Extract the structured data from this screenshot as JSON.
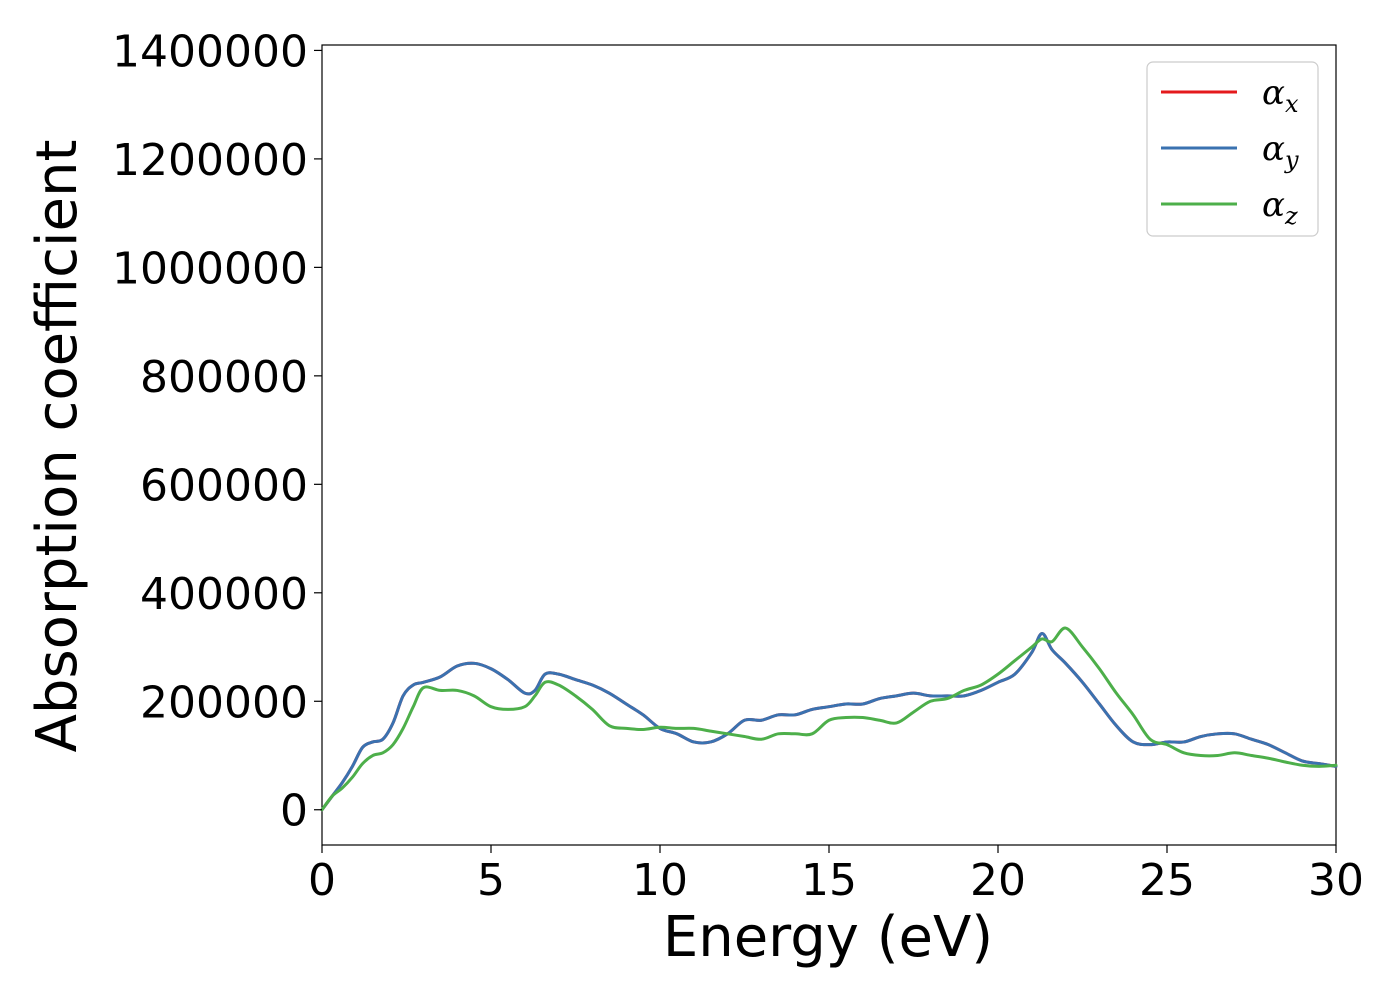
{
  "chart_data": {
    "type": "line",
    "title": "",
    "xlabel": "Energy (eV)",
    "ylabel": "Absorption coefficient",
    "xlim": [
      0,
      30
    ],
    "ylim": [
      -65000,
      1410000
    ],
    "x_ticks": [
      "0",
      "5",
      "10",
      "15",
      "20",
      "25",
      "30"
    ],
    "y_ticks": [
      "0",
      "200000",
      "400000",
      "600000",
      "800000",
      "1000000",
      "1200000",
      "1400000"
    ],
    "grid": false,
    "legend_position": "top-right",
    "series": [
      {
        "name": "α_x",
        "label_main": "α",
        "label_sub": "x",
        "color": "#e41a1c",
        "x": [
          0,
          0.3,
          0.6,
          0.9,
          1.2,
          1.5,
          1.8,
          2.1,
          2.4,
          2.7,
          3.0,
          3.5,
          4.0,
          4.5,
          5.0,
          5.5,
          6.0,
          6.3,
          6.6,
          7.0,
          7.5,
          8.0,
          8.5,
          9.0,
          9.5,
          10.0,
          10.5,
          11.0,
          11.5,
          12.0,
          12.5,
          13.0,
          13.5,
          14.0,
          14.5,
          15.0,
          15.5,
          16.0,
          16.5,
          17.0,
          17.5,
          18.0,
          18.5,
          19.0,
          19.5,
          20.0,
          20.5,
          21.0,
          21.3,
          21.6,
          22.0,
          22.5,
          23.0,
          23.5,
          24.0,
          24.5,
          25.0,
          25.5,
          26.0,
          26.5,
          27.0,
          27.5,
          28.0,
          28.5,
          29.0,
          29.5,
          30.0
        ],
        "y": [
          0,
          25000,
          50000,
          80000,
          115000,
          125000,
          130000,
          160000,
          210000,
          230000,
          235000,
          245000,
          265000,
          270000,
          260000,
          240000,
          215000,
          220000,
          250000,
          250000,
          240000,
          230000,
          215000,
          195000,
          175000,
          150000,
          140000,
          125000,
          125000,
          140000,
          165000,
          165000,
          175000,
          175000,
          185000,
          190000,
          195000,
          195000,
          205000,
          210000,
          215000,
          210000,
          210000,
          210000,
          220000,
          235000,
          250000,
          290000,
          325000,
          295000,
          270000,
          235000,
          195000,
          155000,
          125000,
          120000,
          125000,
          125000,
          135000,
          140000,
          140000,
          130000,
          120000,
          105000,
          90000,
          85000,
          80000
        ]
      },
      {
        "name": "α_y",
        "label_main": "α",
        "label_sub": "y",
        "color": "#3a72b0",
        "x": [
          0,
          0.3,
          0.6,
          0.9,
          1.2,
          1.5,
          1.8,
          2.1,
          2.4,
          2.7,
          3.0,
          3.5,
          4.0,
          4.5,
          5.0,
          5.5,
          6.0,
          6.3,
          6.6,
          7.0,
          7.5,
          8.0,
          8.5,
          9.0,
          9.5,
          10.0,
          10.5,
          11.0,
          11.5,
          12.0,
          12.5,
          13.0,
          13.5,
          14.0,
          14.5,
          15.0,
          15.5,
          16.0,
          16.5,
          17.0,
          17.5,
          18.0,
          18.5,
          19.0,
          19.5,
          20.0,
          20.5,
          21.0,
          21.3,
          21.6,
          22.0,
          22.5,
          23.0,
          23.5,
          24.0,
          24.5,
          25.0,
          25.5,
          26.0,
          26.5,
          27.0,
          27.5,
          28.0,
          28.5,
          29.0,
          29.5,
          30.0
        ],
        "y": [
          0,
          25000,
          50000,
          80000,
          115000,
          125000,
          130000,
          160000,
          210000,
          230000,
          235000,
          245000,
          265000,
          270000,
          260000,
          240000,
          215000,
          220000,
          250000,
          250000,
          240000,
          230000,
          215000,
          195000,
          175000,
          150000,
          140000,
          125000,
          125000,
          140000,
          165000,
          165000,
          175000,
          175000,
          185000,
          190000,
          195000,
          195000,
          205000,
          210000,
          215000,
          210000,
          210000,
          210000,
          220000,
          235000,
          250000,
          290000,
          325000,
          295000,
          270000,
          235000,
          195000,
          155000,
          125000,
          120000,
          125000,
          125000,
          135000,
          140000,
          140000,
          130000,
          120000,
          105000,
          90000,
          85000,
          80000
        ]
      },
      {
        "name": "α_z",
        "label_main": "α",
        "label_sub": "z",
        "color": "#4daf4a",
        "x": [
          0,
          0.3,
          0.6,
          0.9,
          1.2,
          1.5,
          1.8,
          2.1,
          2.4,
          2.7,
          3.0,
          3.5,
          4.0,
          4.5,
          5.0,
          5.5,
          6.0,
          6.3,
          6.6,
          7.0,
          7.5,
          8.0,
          8.5,
          9.0,
          9.5,
          10.0,
          10.5,
          11.0,
          11.5,
          12.0,
          12.5,
          13.0,
          13.5,
          14.0,
          14.5,
          15.0,
          15.5,
          16.0,
          16.5,
          17.0,
          17.5,
          18.0,
          18.5,
          19.0,
          19.5,
          20.0,
          20.5,
          21.0,
          21.3,
          21.6,
          22.0,
          22.5,
          23.0,
          23.5,
          24.0,
          24.5,
          25.0,
          25.5,
          26.0,
          26.5,
          27.0,
          27.5,
          28.0,
          28.5,
          29.0,
          29.5,
          30.0
        ],
        "y": [
          0,
          25000,
          40000,
          60000,
          85000,
          100000,
          105000,
          120000,
          150000,
          190000,
          225000,
          220000,
          220000,
          210000,
          190000,
          185000,
          190000,
          210000,
          235000,
          230000,
          210000,
          185000,
          155000,
          150000,
          148000,
          152000,
          150000,
          150000,
          145000,
          140000,
          135000,
          130000,
          140000,
          140000,
          140000,
          165000,
          170000,
          170000,
          165000,
          160000,
          180000,
          200000,
          205000,
          220000,
          230000,
          250000,
          275000,
          300000,
          315000,
          310000,
          335000,
          300000,
          260000,
          215000,
          175000,
          130000,
          120000,
          105000,
          100000,
          100000,
          105000,
          100000,
          95000,
          88000,
          82000,
          80000,
          82000
        ]
      }
    ]
  }
}
